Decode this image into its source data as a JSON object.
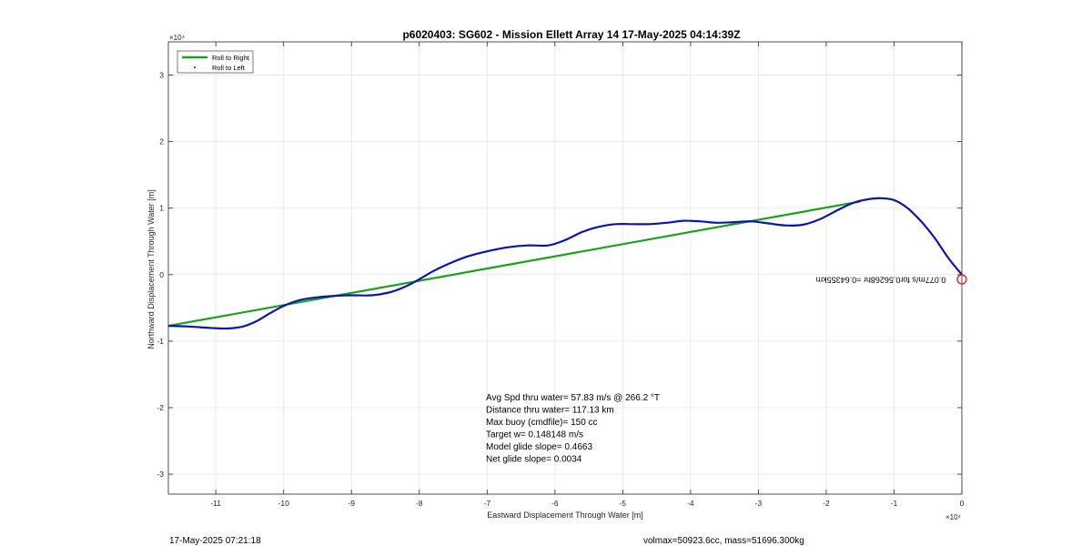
{
  "chart_data": {
    "type": "line",
    "title": "p6020403: SG602 - Mission Ellett Array 14 17-May-2025 04:14:39Z",
    "xlabel": "Eastward Displacement Through Water [m]",
    "ylabel": "Northward Displacement Through Water [m]",
    "x_exponent": "×10⁴",
    "y_exponent": "×10⁴",
    "xlim": [
      -11.7,
      0
    ],
    "ylim": [
      -3.3,
      3.5
    ],
    "xticks": [
      -11,
      -10,
      -9,
      -8,
      -7,
      -6,
      -5,
      -4,
      -3,
      -2,
      -1,
      0
    ],
    "yticks": [
      -3,
      -2,
      -1,
      0,
      1,
      2,
      3
    ],
    "x_tick_labels": [
      "-11",
      "-10",
      "-9",
      "-8",
      "-7",
      "-6",
      "-5",
      "-4",
      "-3",
      "-2",
      "-1",
      "0"
    ],
    "y_tick_labels": [
      "-3",
      "-2",
      "-1",
      "0",
      "1",
      "2",
      "3"
    ],
    "grid": true,
    "legend_position": "top-left",
    "series": [
      {
        "name": "Roll to Right",
        "color": "#1aa21a",
        "style": "line",
        "x": [
          -11.7,
          -1.5
        ],
        "y": [
          -0.77,
          1.1
        ]
      },
      {
        "name": "Roll to Left",
        "color": "#d62728",
        "style": "marker",
        "x": [],
        "y": []
      },
      {
        "name": "",
        "color": "#0a14b4",
        "style": "line",
        "x": [
          -11.7,
          -11.4,
          -11.1,
          -10.85,
          -10.6,
          -10.4,
          -10.2,
          -10.0,
          -9.75,
          -9.5,
          -9.25,
          -9.0,
          -8.7,
          -8.45,
          -8.25,
          -8.05,
          -7.8,
          -7.55,
          -7.3,
          -7.0,
          -6.7,
          -6.4,
          -6.1,
          -5.85,
          -5.6,
          -5.35,
          -5.1,
          -4.85,
          -4.6,
          -4.35,
          -4.1,
          -3.85,
          -3.6,
          -3.35,
          -3.1,
          -2.85,
          -2.6,
          -2.35,
          -2.1,
          -1.85,
          -1.6,
          -1.4,
          -1.2,
          -1.0,
          -0.8,
          -0.6,
          -0.4,
          -0.2,
          0.0
        ],
        "y": [
          -0.77,
          -0.78,
          -0.8,
          -0.81,
          -0.78,
          -0.7,
          -0.58,
          -0.47,
          -0.38,
          -0.34,
          -0.32,
          -0.31,
          -0.31,
          -0.27,
          -0.2,
          -0.1,
          0.05,
          0.17,
          0.27,
          0.35,
          0.41,
          0.44,
          0.44,
          0.52,
          0.64,
          0.72,
          0.76,
          0.76,
          0.76,
          0.78,
          0.81,
          0.8,
          0.78,
          0.79,
          0.8,
          0.77,
          0.74,
          0.75,
          0.83,
          0.96,
          1.08,
          1.13,
          1.15,
          1.12,
          1.0,
          0.8,
          0.55,
          0.25,
          0.0
        ]
      }
    ],
    "annotation_right": "0.077m/s for0.56268hr =0.64355km",
    "stats": [
      "Avg Spd thru water= 57.83 m/s @ 266.2 °T",
      "Distance thru water= 117.13 km",
      "Max buoy (cmdfile)= 150 cc",
      "Target w= 0.148148 m/s",
      "Model glide slope= 0.4663",
      "Net glide slope= 0.0034"
    ]
  },
  "footer": {
    "timestamp": "17-May-2025 07:21:18",
    "volmax": "volmax=50923.6cc, mass=51696.300kg"
  }
}
